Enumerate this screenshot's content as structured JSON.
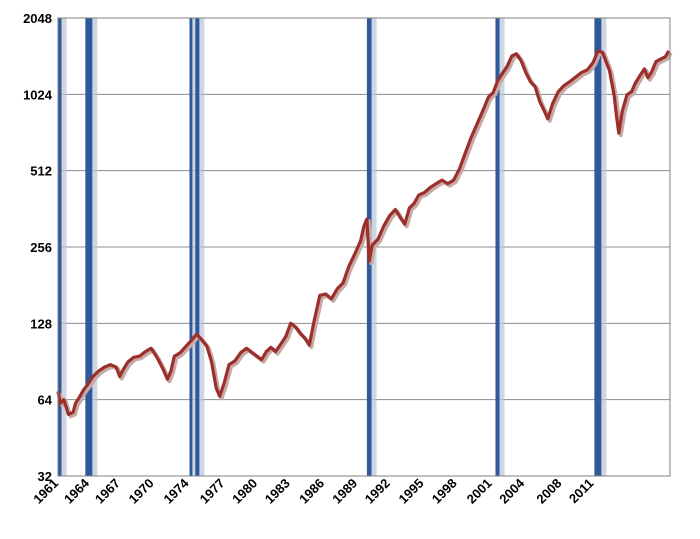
{
  "chart_data": {
    "type": "line",
    "title": "",
    "xlabel": "",
    "ylabel": "",
    "y_scale": "log2",
    "ylim": [
      32,
      2048
    ],
    "xlim": [
      1961.0,
      2013.6
    ],
    "y_ticks": [
      32,
      64,
      128,
      256,
      512,
      1024,
      2048
    ],
    "x_ticks": [
      "1961",
      "1964",
      "1967",
      "1970",
      "1974",
      "1977",
      "1980",
      "1983",
      "1986",
      "1989",
      "1992",
      "1995",
      "1998",
      "2001",
      "2004",
      "2008",
      "2011"
    ],
    "x_tick_values": [
      1961.1,
      1963.75,
      1966.4,
      1969.3,
      1972.3,
      1975.4,
      1978.2,
      1981.0,
      1983.95,
      1986.8,
      1989.6,
      1992.5,
      1995.35,
      1998.35,
      2001.15,
      2004.35,
      2007.1
    ],
    "grid": "horizontal",
    "series_color": "#9a2f2b",
    "band_color": "#2e5a9c",
    "shaded_bands": [
      [
        1961.0,
        1961.3
      ],
      [
        1963.35,
        1963.95
      ],
      [
        1972.3,
        1972.55
      ],
      [
        1972.8,
        1973.15
      ],
      [
        1987.55,
        1987.95
      ],
      [
        1998.6,
        1998.95
      ],
      [
        2007.1,
        2007.7
      ]
    ],
    "series": [
      {
        "x": [
          1961.0,
          1961.2,
          1961.5,
          1961.9,
          1962.3,
          1962.5,
          1962.8,
          1963.2,
          1963.6,
          1964.0,
          1964.5,
          1965.0,
          1965.5,
          1966.0,
          1966.3,
          1966.6,
          1967.0,
          1967.5,
          1968.0,
          1968.5,
          1969.0,
          1969.5,
          1970.0,
          1970.4,
          1970.7,
          1971.0,
          1971.5,
          1972.0,
          1972.5,
          1972.9,
          1973.3,
          1973.8,
          1974.2,
          1974.6,
          1974.9,
          1975.3,
          1975.7,
          1976.2,
          1976.7,
          1977.2,
          1977.7,
          1978.1,
          1978.5,
          1978.9,
          1979.3,
          1979.7,
          1980.2,
          1980.6,
          1981.0,
          1981.4,
          1981.8,
          1982.2,
          1982.6,
          1983.0,
          1983.5,
          1984.0,
          1984.5,
          1985.0,
          1985.5,
          1986.0,
          1986.5,
          1987.0,
          1987.3,
          1987.55,
          1987.75,
          1988.0,
          1988.5,
          1989.0,
          1989.5,
          1990.0,
          1990.5,
          1990.8,
          1991.2,
          1991.6,
          1992.0,
          1992.5,
          1993.0,
          1993.5,
          1994.0,
          1994.5,
          1995.0,
          1995.5,
          1996.0,
          1996.5,
          1997.0,
          1997.5,
          1998.0,
          1998.4,
          1998.8,
          1999.2,
          1999.6,
          2000.0,
          2000.4,
          2000.8,
          2001.2,
          2001.6,
          2002.0,
          2002.4,
          2002.8,
          2003.1,
          2003.5,
          2004.0,
          2004.5,
          2005.0,
          2005.5,
          2006.0,
          2006.5,
          2007.0,
          2007.4,
          2007.8,
          2008.1,
          2008.4,
          2008.8,
          2009.0,
          2009.2,
          2009.5,
          2009.9,
          2010.3,
          2010.6,
          2011.0,
          2011.4,
          2011.7,
          2012.0,
          2012.4,
          2012.8,
          2013.2,
          2013.5
        ],
        "values": [
          69,
          62,
          64,
          56,
          57,
          62,
          65,
          70,
          74,
          79,
          83,
          86,
          88,
          86,
          79,
          84,
          90,
          94,
          95,
          99,
          102,
          94,
          85,
          77,
          83,
          95,
          98,
          104,
          110,
          116,
          111,
          104,
          90,
          71,
          66,
          75,
          88,
          91,
          98,
          102,
          98,
          95,
          92,
          99,
          103,
          99,
          107,
          114,
          128,
          124,
          117,
          112,
          105,
          130,
          165,
          167,
          160,
          175,
          185,
          215,
          240,
          270,
          310,
          330,
          225,
          260,
          275,
          310,
          340,
          360,
          330,
          315,
          365,
          380,
          410,
          420,
          440,
          455,
          470,
          455,
          470,
          520,
          600,
          690,
          780,
          880,
          1000,
          1040,
          1160,
          1240,
          1320,
          1450,
          1480,
          1390,
          1250,
          1150,
          1100,
          960,
          880,
          820,
          940,
          1050,
          1110,
          1150,
          1200,
          1250,
          1280,
          1370,
          1520,
          1500,
          1380,
          1270,
          1010,
          840,
          720,
          880,
          1020,
          1050,
          1130,
          1210,
          1290,
          1190,
          1250,
          1380,
          1410,
          1440,
          1520
        ]
      }
    ]
  }
}
